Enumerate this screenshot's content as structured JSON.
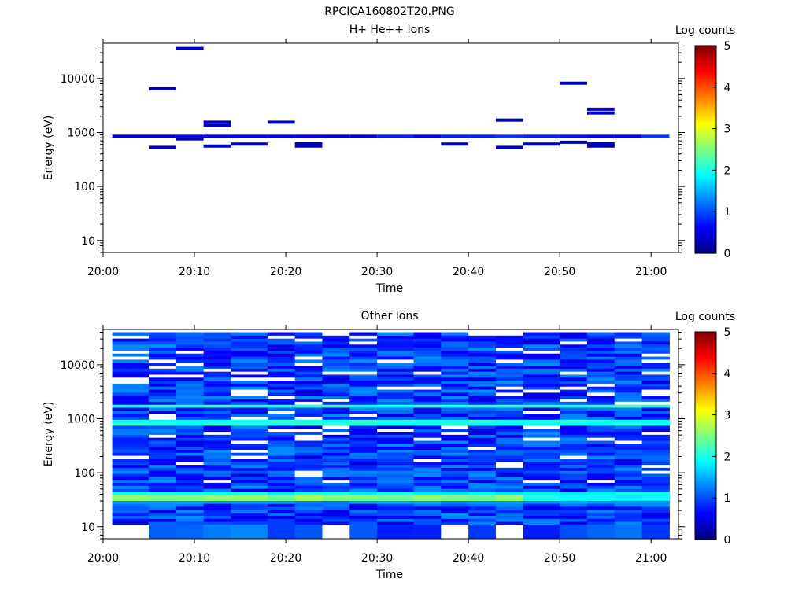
{
  "figure_title": "RPCICA160802T20.PNG",
  "panel_top": {
    "title": "H+ He++ Ions",
    "ylabel": "Energy (eV)",
    "xlabel": "Time",
    "colorbar_label": "Log counts"
  },
  "panel_bottom": {
    "title": "Other Ions",
    "ylabel": "Energy (eV)",
    "xlabel": "Time",
    "colorbar_label": "Log counts"
  },
  "colormap": [
    "#00007f",
    "#0000ff",
    "#007fff",
    "#00ffff",
    "#7fff7f",
    "#ffff00",
    "#ff7f00",
    "#ff0000",
    "#7f0000"
  ],
  "chart_data": [
    {
      "type": "heatmap",
      "title": "H+ He++ Ions",
      "xlabel": "Time",
      "ylabel": "Energy (eV)",
      "yscale": "log",
      "xlim": [
        "20:00",
        "21:03"
      ],
      "ylim": [
        6,
        45000
      ],
      "x_tick_labels": [
        "20:00",
        "20:10",
        "20:20",
        "20:30",
        "20:40",
        "20:50",
        "21:00"
      ],
      "y_tick_labels": [
        "10",
        "100",
        "1000",
        "10000"
      ],
      "colorbar": {
        "label": "Log counts",
        "range": [
          0,
          5
        ],
        "ticks": [
          "0",
          "1",
          "2",
          "3",
          "4",
          "5"
        ]
      },
      "cells": [
        {
          "t0": "20:01",
          "t1": "20:05",
          "e": 850,
          "v": 0.4
        },
        {
          "t0": "20:05",
          "t1": "20:08",
          "e": 850,
          "v": 0.4
        },
        {
          "t0": "20:08",
          "t1": "20:11",
          "e": 850,
          "v": 0.5
        },
        {
          "t0": "20:11",
          "t1": "20:14",
          "e": 850,
          "v": 0.6
        },
        {
          "t0": "20:14",
          "t1": "20:18",
          "e": 850,
          "v": 0.6
        },
        {
          "t0": "20:18",
          "t1": "20:21",
          "e": 850,
          "v": 0.6
        },
        {
          "t0": "20:21",
          "t1": "20:24",
          "e": 850,
          "v": 0.5
        },
        {
          "t0": "20:24",
          "t1": "20:27",
          "e": 850,
          "v": 0.4
        },
        {
          "t0": "20:27",
          "t1": "20:30",
          "e": 850,
          "v": 0.4
        },
        {
          "t0": "20:30",
          "t1": "20:34",
          "e": 850,
          "v": 0.8
        },
        {
          "t0": "20:34",
          "t1": "20:37",
          "e": 850,
          "v": 0.6
        },
        {
          "t0": "20:37",
          "t1": "20:40",
          "e": 850,
          "v": 0.8
        },
        {
          "t0": "20:40",
          "t1": "20:43",
          "e": 850,
          "v": 0.8
        },
        {
          "t0": "20:43",
          "t1": "20:46",
          "e": 850,
          "v": 0.9
        },
        {
          "t0": "20:46",
          "t1": "20:50",
          "e": 850,
          "v": 0.8
        },
        {
          "t0": "20:50",
          "t1": "20:53",
          "e": 850,
          "v": 0.7
        },
        {
          "t0": "20:53",
          "t1": "20:56",
          "e": 850,
          "v": 0.6
        },
        {
          "t0": "20:56",
          "t1": "20:59",
          "e": 850,
          "v": 0.6
        },
        {
          "t0": "20:59",
          "t1": "21:02",
          "e": 850,
          "v": 0.9
        },
        {
          "t0": "20:05",
          "t1": "20:08",
          "e": 6500,
          "v": 0.3
        },
        {
          "t0": "20:08",
          "t1": "20:11",
          "e": 36000,
          "v": 0.3
        },
        {
          "t0": "20:05",
          "t1": "20:08",
          "e": 530,
          "v": 0.3
        },
        {
          "t0": "20:08",
          "t1": "20:11",
          "e": 760,
          "v": 0.3
        },
        {
          "t0": "20:11",
          "t1": "20:14",
          "e": 1550,
          "v": 0.3
        },
        {
          "t0": "20:11",
          "t1": "20:14",
          "e": 1350,
          "v": 0.3
        },
        {
          "t0": "20:11",
          "t1": "20:14",
          "e": 560,
          "v": 0.3
        },
        {
          "t0": "20:14",
          "t1": "20:18",
          "e": 610,
          "v": 0.3
        },
        {
          "t0": "20:18",
          "t1": "20:21",
          "e": 1550,
          "v": 0.3
        },
        {
          "t0": "20:21",
          "t1": "20:24",
          "e": 620,
          "v": 0.3
        },
        {
          "t0": "20:21",
          "t1": "20:24",
          "e": 560,
          "v": 0.3
        },
        {
          "t0": "20:37",
          "t1": "20:40",
          "e": 610,
          "v": 0.3
        },
        {
          "t0": "20:43",
          "t1": "20:46",
          "e": 1700,
          "v": 0.3
        },
        {
          "t0": "20:43",
          "t1": "20:46",
          "e": 530,
          "v": 0.3
        },
        {
          "t0": "20:46",
          "t1": "20:50",
          "e": 610,
          "v": 0.3
        },
        {
          "t0": "20:50",
          "t1": "20:53",
          "e": 8200,
          "v": 0.3
        },
        {
          "t0": "20:50",
          "t1": "20:53",
          "e": 660,
          "v": 0.3
        },
        {
          "t0": "20:53",
          "t1": "20:56",
          "e": 2700,
          "v": 0.3
        },
        {
          "t0": "20:53",
          "t1": "20:56",
          "e": 2300,
          "v": 0.3
        },
        {
          "t0": "20:53",
          "t1": "20:56",
          "e": 620,
          "v": 0.3
        },
        {
          "t0": "20:53",
          "t1": "20:56",
          "e": 560,
          "v": 0.3
        }
      ]
    },
    {
      "type": "heatmap",
      "title": "Other Ions",
      "xlabel": "Time",
      "ylabel": "Energy (eV)",
      "yscale": "log",
      "xlim": [
        "20:00",
        "21:03"
      ],
      "ylim": [
        6,
        45000
      ],
      "x_tick_labels": [
        "20:00",
        "20:10",
        "20:20",
        "20:30",
        "20:40",
        "20:50",
        "21:00"
      ],
      "y_tick_labels": [
        "10",
        "100",
        "1000",
        "10000"
      ],
      "colorbar": {
        "label": "Log counts",
        "range": [
          0,
          5
        ],
        "ticks": [
          "0",
          "1",
          "2",
          "3",
          "4",
          "5"
        ]
      },
      "time_bins": [
        "20:01",
        "20:05",
        "20:08",
        "20:11",
        "20:14",
        "20:18",
        "20:21",
        "20:24",
        "20:27",
        "20:30",
        "20:34",
        "20:37",
        "20:40",
        "20:43",
        "20:46",
        "20:50",
        "20:53",
        "20:56",
        "20:59",
        "21:02"
      ],
      "energy_range": [
        11,
        40000
      ],
      "background_level": 0.9,
      "bands": [
        {
          "energy": 1750,
          "level": 2.1
        },
        {
          "energy": 870,
          "level": 2.0
        },
        {
          "energy": 40,
          "level": 1.9
        },
        {
          "energy": 34,
          "level": 2.6
        },
        {
          "energy": 29,
          "level": 1.3
        }
      ],
      "band_levels_by_bin": {
        "34eV": [
          2.6,
          2.5,
          2.5,
          2.6,
          2.6,
          2.4,
          2.7,
          2.5,
          2.5,
          2.4,
          2.6,
          2.5,
          2.4,
          2.6,
          2.0,
          1.9,
          1.9,
          1.8,
          1.9
        ]
      },
      "empty_cells_low_energy": [
        {
          "t0": "20:01",
          "t1": "20:05",
          "e_max": 11
        },
        {
          "t0": "20:24",
          "t1": "20:27",
          "e_max": 11
        },
        {
          "t0": "20:37",
          "t1": "20:40",
          "e_max": 11
        },
        {
          "t0": "20:43",
          "t1": "20:46",
          "e_max": 11
        }
      ]
    }
  ]
}
